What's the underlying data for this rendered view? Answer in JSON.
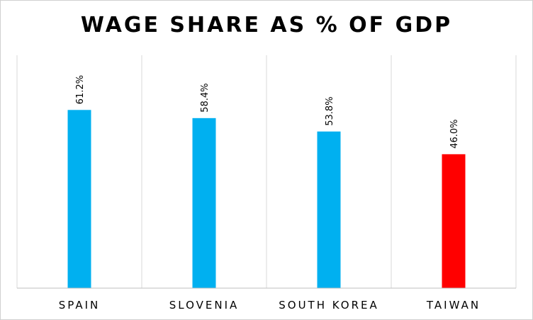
{
  "chart_data": {
    "type": "bar",
    "title": "WAGE SHARE AS % OF GDP",
    "xlabel": "",
    "ylabel": "",
    "categories": [
      "SPAIN",
      "SLOVENIA",
      "SOUTH KOREA",
      "TAIWAN"
    ],
    "values": [
      61.2,
      58.4,
      53.8,
      46.0
    ],
    "data_labels": [
      "61.2%",
      "58.4%",
      "53.8%",
      "46.0%"
    ],
    "colors": [
      "#00b0f0",
      "#00b0f0",
      "#00b0f0",
      "#ff0000"
    ],
    "ylim": [
      0,
      80
    ],
    "grid": "vertical separators",
    "legend": "none"
  }
}
